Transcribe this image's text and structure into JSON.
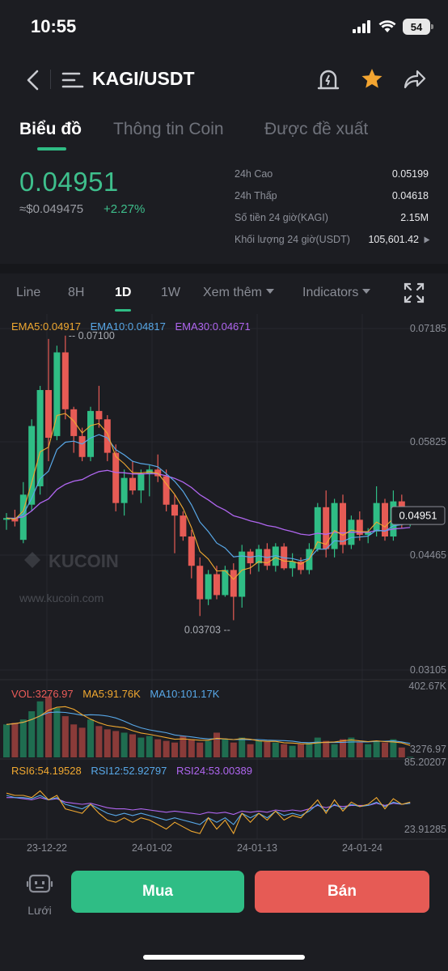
{
  "status": {
    "time": "10:55",
    "battery": "54"
  },
  "header": {
    "pair": "KAGI/USDT"
  },
  "tabs": [
    {
      "label": "Biểu đồ",
      "active": true
    },
    {
      "label": "Thông tin Coin",
      "active": false
    },
    {
      "label": "Được đề xuất",
      "active": false
    }
  ],
  "price": {
    "last": "0.04951",
    "usd": "≈$0.049475",
    "change": "+2.27%",
    "stats": [
      {
        "label": "24h Cao",
        "value": "0.05199"
      },
      {
        "label": "24h Thấp",
        "value": "0.04618"
      },
      {
        "label": "Số tiền 24 giờ(KAGI)",
        "value": "2.15M"
      },
      {
        "label": "Khối lượng 24 giờ(USDT)",
        "value": "105,601.42"
      }
    ]
  },
  "toolbar": {
    "items": [
      "Line",
      "8H",
      "1D",
      "1W"
    ],
    "active": "1D",
    "more": "Xem thêm",
    "indicators": "Indicators"
  },
  "chart_data": {
    "type": "candlestick",
    "legend": {
      "ema5": "EMA5:0.04917",
      "ema10": "EMA10:0.04817",
      "ema30": "EMA30:0.04671"
    },
    "price_axis": [
      "0.07185",
      "0.05825",
      "0.04465",
      "0.03105"
    ],
    "price_range": [
      0.03105,
      0.07185
    ],
    "current_price": "0.04951",
    "max_marker": "0.07100",
    "min_marker": "0.03703",
    "watermark": "KUCOIN",
    "watermark_url": "www.kucoin.com",
    "x_labels": [
      "23-12-22",
      "24-01-02",
      "24-01-13",
      "24-01-24"
    ],
    "candles": [
      {
        "o": 0.049,
        "h": 0.0498,
        "l": 0.0478,
        "c": 0.0492
      },
      {
        "o": 0.0492,
        "h": 0.0502,
        "l": 0.0482,
        "c": 0.0488
      },
      {
        "o": 0.0466,
        "h": 0.0535,
        "l": 0.0462,
        "c": 0.052
      },
      {
        "o": 0.0508,
        "h": 0.061,
        "l": 0.05,
        "c": 0.0602
      },
      {
        "o": 0.053,
        "h": 0.065,
        "l": 0.052,
        "c": 0.0645
      },
      {
        "o": 0.0645,
        "h": 0.0706,
        "l": 0.056,
        "c": 0.0588
      },
      {
        "o": 0.059,
        "h": 0.0698,
        "l": 0.0585,
        "c": 0.069
      },
      {
        "o": 0.069,
        "h": 0.071,
        "l": 0.061,
        "c": 0.0622
      },
      {
        "o": 0.0622,
        "h": 0.0625,
        "l": 0.057,
        "c": 0.059
      },
      {
        "o": 0.059,
        "h": 0.06,
        "l": 0.056,
        "c": 0.0565
      },
      {
        "o": 0.0565,
        "h": 0.0625,
        "l": 0.056,
        "c": 0.062
      },
      {
        "o": 0.062,
        "h": 0.065,
        "l": 0.06,
        "c": 0.061
      },
      {
        "o": 0.061,
        "h": 0.0615,
        "l": 0.056,
        "c": 0.057
      },
      {
        "o": 0.057,
        "h": 0.058,
        "l": 0.05,
        "c": 0.051
      },
      {
        "o": 0.051,
        "h": 0.055,
        "l": 0.0495,
        "c": 0.054
      },
      {
        "o": 0.054,
        "h": 0.056,
        "l": 0.052,
        "c": 0.0525
      },
      {
        "o": 0.0525,
        "h": 0.055,
        "l": 0.051,
        "c": 0.0545
      },
      {
        "o": 0.0545,
        "h": 0.0555,
        "l": 0.0518,
        "c": 0.055
      },
      {
        "o": 0.055,
        "h": 0.0568,
        "l": 0.0535,
        "c": 0.0542
      },
      {
        "o": 0.0542,
        "h": 0.055,
        "l": 0.05,
        "c": 0.0508
      },
      {
        "o": 0.0508,
        "h": 0.052,
        "l": 0.045,
        "c": 0.0495
      },
      {
        "o": 0.0495,
        "h": 0.05,
        "l": 0.0465,
        "c": 0.047
      },
      {
        "o": 0.047,
        "h": 0.0478,
        "l": 0.042,
        "c": 0.0435
      },
      {
        "o": 0.0435,
        "h": 0.0445,
        "l": 0.0375,
        "c": 0.0395
      },
      {
        "o": 0.0395,
        "h": 0.043,
        "l": 0.0388,
        "c": 0.0425
      },
      {
        "o": 0.0425,
        "h": 0.0435,
        "l": 0.0395,
        "c": 0.04
      },
      {
        "o": 0.04,
        "h": 0.0435,
        "l": 0.0398,
        "c": 0.043
      },
      {
        "o": 0.043,
        "h": 0.0438,
        "l": 0.037,
        "c": 0.0398
      },
      {
        "o": 0.0398,
        "h": 0.046,
        "l": 0.0385,
        "c": 0.0452
      },
      {
        "o": 0.0452,
        "h": 0.0455,
        "l": 0.0425,
        "c": 0.0438
      },
      {
        "o": 0.0438,
        "h": 0.046,
        "l": 0.0428,
        "c": 0.0455
      },
      {
        "o": 0.0455,
        "h": 0.0462,
        "l": 0.043,
        "c": 0.0435
      },
      {
        "o": 0.0435,
        "h": 0.0462,
        "l": 0.0428,
        "c": 0.0458
      },
      {
        "o": 0.0458,
        "h": 0.0462,
        "l": 0.043,
        "c": 0.0432
      },
      {
        "o": 0.0432,
        "h": 0.045,
        "l": 0.0422,
        "c": 0.044
      },
      {
        "o": 0.044,
        "h": 0.0445,
        "l": 0.0425,
        "c": 0.043
      },
      {
        "o": 0.043,
        "h": 0.0462,
        "l": 0.0425,
        "c": 0.0455
      },
      {
        "o": 0.0455,
        "h": 0.051,
        "l": 0.0452,
        "c": 0.0505
      },
      {
        "o": 0.0505,
        "h": 0.0525,
        "l": 0.0445,
        "c": 0.0455
      },
      {
        "o": 0.0455,
        "h": 0.0515,
        "l": 0.0445,
        "c": 0.051
      },
      {
        "o": 0.051,
        "h": 0.052,
        "l": 0.045,
        "c": 0.046
      },
      {
        "o": 0.046,
        "h": 0.0495,
        "l": 0.0455,
        "c": 0.049
      },
      {
        "o": 0.049,
        "h": 0.05,
        "l": 0.0465,
        "c": 0.0472
      },
      {
        "o": 0.0472,
        "h": 0.048,
        "l": 0.0462,
        "c": 0.0476
      },
      {
        "o": 0.0476,
        "h": 0.053,
        "l": 0.047,
        "c": 0.051
      },
      {
        "o": 0.051,
        "h": 0.0515,
        "l": 0.0465,
        "c": 0.047
      },
      {
        "o": 0.047,
        "h": 0.0525,
        "l": 0.0465,
        "c": 0.0512
      },
      {
        "o": 0.0512,
        "h": 0.052,
        "l": 0.048,
        "c": 0.049
      },
      {
        "o": 0.049,
        "h": 0.0505,
        "l": 0.0482,
        "c": 0.0495
      }
    ],
    "volume": {
      "legend": {
        "vol": "VOL:3276.97",
        "ma5": "MA5:91.76K",
        "ma10": "MA10:101.17K"
      },
      "axis": [
        "402.67K",
        "3276.97"
      ],
      "max": 402670,
      "values": [
        200000,
        210000,
        230000,
        280000,
        340000,
        370000,
        300000,
        250000,
        200000,
        180000,
        230000,
        190000,
        170000,
        160000,
        150000,
        140000,
        120000,
        130000,
        110000,
        100000,
        90000,
        130000,
        110000,
        90000,
        100000,
        150000,
        110000,
        90000,
        120000,
        80000,
        100000,
        95000,
        90000,
        80000,
        70000,
        80000,
        90000,
        120000,
        100000,
        80000,
        110000,
        120000,
        90000,
        80000,
        100000,
        90000,
        110000,
        60000,
        3276.97
      ]
    },
    "rsi": {
      "legend": {
        "rsi6": "RSI6:54.19528",
        "rsi12": "RSI12:52.92797",
        "rsi24": "RSI24:53.00389"
      },
      "axis": [
        "85.20207",
        "23.91285"
      ],
      "range": [
        23.91285,
        85.20207
      ],
      "rsi6": [
        62,
        60,
        60,
        58,
        64,
        56,
        60,
        48,
        46,
        44,
        52,
        44,
        38,
        36,
        40,
        36,
        40,
        38,
        34,
        30,
        36,
        32,
        28,
        26,
        40,
        30,
        38,
        26,
        44,
        36,
        44,
        38,
        46,
        38,
        42,
        40,
        48,
        56,
        44,
        56,
        46,
        54,
        50,
        52,
        58,
        48,
        57,
        52,
        54
      ],
      "rsi12": [
        60,
        58,
        58,
        57,
        60,
        56,
        58,
        52,
        50,
        48,
        52,
        48,
        44,
        42,
        44,
        42,
        44,
        42,
        40,
        38,
        40,
        38,
        36,
        34,
        40,
        36,
        40,
        34,
        44,
        40,
        44,
        40,
        46,
        42,
        44,
        42,
        46,
        52,
        46,
        52,
        48,
        52,
        50,
        51,
        54,
        50,
        54,
        52,
        53
      ],
      "rsi24": [
        58,
        58,
        57,
        56,
        58,
        56,
        57,
        54,
        53,
        52,
        53,
        51,
        49,
        48,
        48,
        47,
        48,
        47,
        46,
        45,
        46,
        45,
        44,
        43,
        45,
        44,
        45,
        43,
        46,
        45,
        46,
        45,
        47,
        46,
        47,
        46,
        48,
        51,
        49,
        51,
        50,
        51,
        51,
        51,
        53,
        51,
        53,
        52,
        53
      ]
    }
  },
  "bottom": {
    "grid_label": "Lưới",
    "buy": "Mua",
    "sell": "Bán"
  },
  "colors": {
    "up": "#2fbd85",
    "down": "#e65b55",
    "ema5": "#f0a830",
    "ema10": "#58a8e8",
    "ema30": "#b066f0"
  }
}
